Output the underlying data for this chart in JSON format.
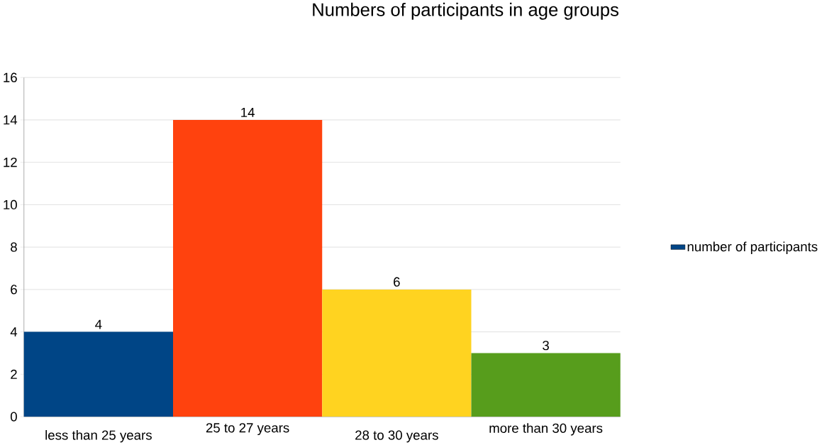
{
  "chart_data": {
    "type": "bar",
    "title": "Numbers of participants in age groups",
    "categories": [
      "less than 25 years",
      "25 to 27 years",
      "28 to 30 years",
      "more than 30 years"
    ],
    "series": [
      {
        "name": "number of participants",
        "color": "#004586",
        "colors": [
          "#004586",
          "#ff420e",
          "#ffd320",
          "#579d1c"
        ],
        "values": [
          4,
          14,
          6,
          3
        ]
      }
    ],
    "ylim": [
      0,
      16
    ],
    "yticks": [
      0,
      2,
      4,
      6,
      8,
      10,
      12,
      14,
      16
    ],
    "grid": "y",
    "legend": "right",
    "data_labels": true
  }
}
